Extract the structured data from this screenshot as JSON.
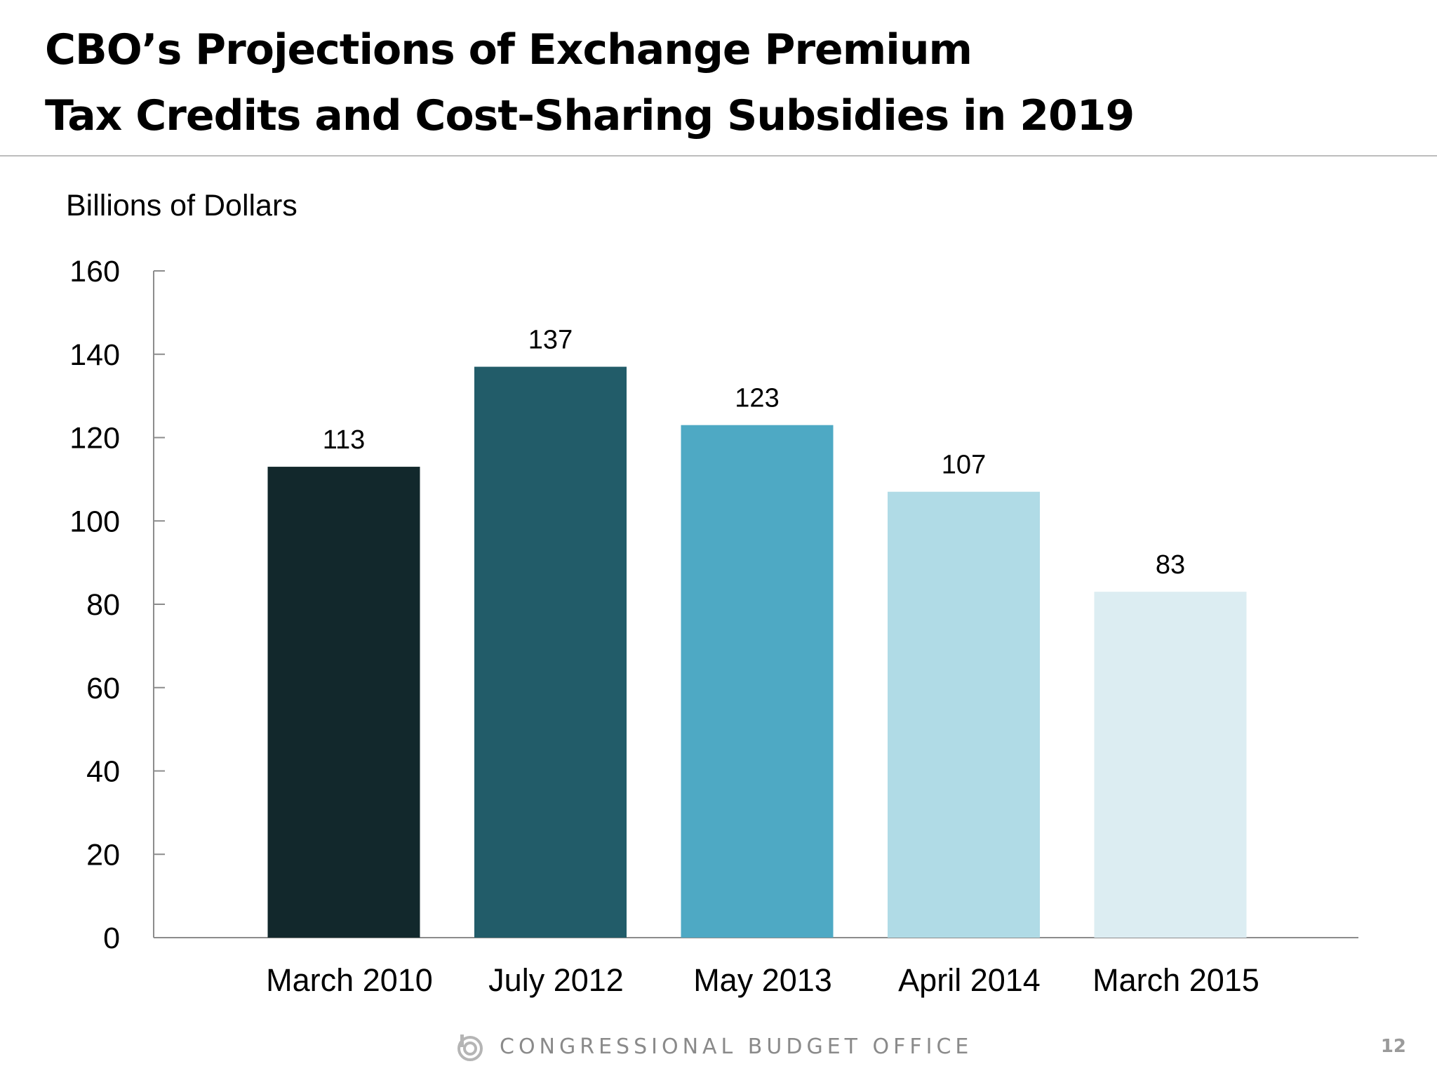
{
  "slide": {
    "title_line1": "CBO’s Projections of Exchange Premium",
    "title_line2": "Tax Credits and Cost-Sharing Subsidies in 2019"
  },
  "chart_data": {
    "type": "bar",
    "title": "CBO’s Projections of Exchange Premium Tax Credits and Cost-Sharing Subsidies in 2019",
    "xlabel": "",
    "ylabel": "Billions of Dollars",
    "categories": [
      "March 2010",
      "July 2012",
      "May 2013",
      "April 2014",
      "March 2015"
    ],
    "values": [
      113,
      137,
      123,
      107,
      83
    ],
    "data_labels": [
      "113",
      "137",
      "123",
      "107",
      "83"
    ],
    "bar_colors": [
      "#12282c",
      "#225c69",
      "#4ea9c4",
      "#b0dbe6",
      "#dcedf2"
    ],
    "ylim": [
      0,
      160
    ],
    "yticks": [
      0,
      20,
      40,
      60,
      80,
      100,
      120,
      140,
      160
    ],
    "ytick_labels": [
      "0",
      "20",
      "40",
      "60",
      "80",
      "100",
      "120",
      "140",
      "160"
    ],
    "grid": false,
    "legend": "none"
  },
  "footer": {
    "organization": "CONGRESSIONAL BUDGET OFFICE",
    "logo_icon": "cbo-logo-icon",
    "page_number": "12"
  },
  "colors": {
    "axis": "#8c8c8c",
    "footer_text": "#8a8a8a"
  }
}
